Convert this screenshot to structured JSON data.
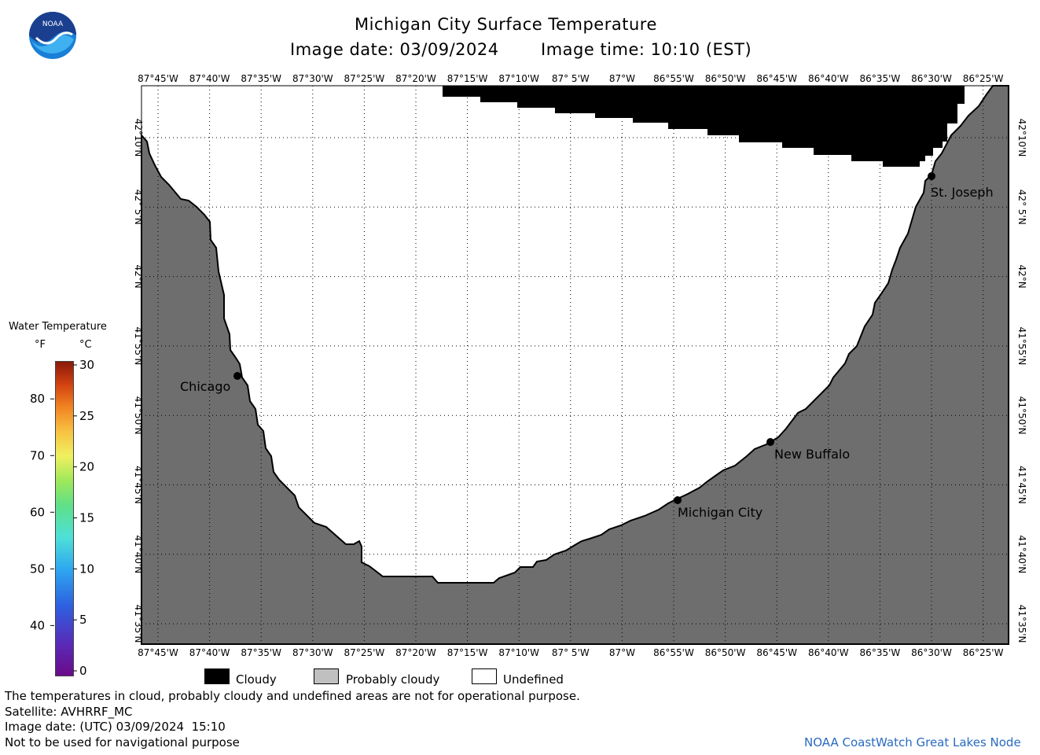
{
  "header": {
    "title": "Michigan City Surface Temperature",
    "image_date": "Image date: 03/09/2024",
    "image_time": "Image time: 10:10 (EST)"
  },
  "logo": {
    "text": "NOAA",
    "icon": "noaa-logo-icon"
  },
  "map": {
    "lon_labels": [
      "87°45'W",
      "87°40'W",
      "87°35'W",
      "87°30'W",
      "87°25'W",
      "87°20'W",
      "87°15'W",
      "87°10'W",
      "87° 5'W",
      "87°W",
      "86°55'W",
      "86°50'W",
      "86°45'W",
      "86°40'W",
      "86°35'W",
      "86°30'W",
      "86°25'W"
    ],
    "lat_labels": [
      "42°10'N",
      "42° 5'N",
      "42°N",
      "41°55'N",
      "41°50'N",
      "41°45'N",
      "41°40'N",
      "41°35'N"
    ],
    "cities": [
      {
        "name": "Chicago"
      },
      {
        "name": "Michigan City"
      },
      {
        "name": "New Buffalo"
      },
      {
        "name": "St. Joseph"
      }
    ],
    "colors": {
      "land": "#6e6e6e",
      "cloud": "#000000",
      "undefined": "#ffffff",
      "grid": "#000000"
    }
  },
  "colorbar": {
    "title": "Water Temperature",
    "unit_f": "°F",
    "unit_c": "°C",
    "f_ticks": [
      "80",
      "70",
      "60",
      "50",
      "40"
    ],
    "c_ticks": [
      "30",
      "25",
      "20",
      "15",
      "10",
      "5",
      "0"
    ]
  },
  "legend": {
    "cloudy": "Cloudy",
    "probably_cloudy": "Probably cloudy",
    "undefined": "Undefined",
    "colors": {
      "cloudy": "#000000",
      "probably_cloudy": "#c0c0c0",
      "undefined": "#ffffff"
    }
  },
  "footer": {
    "line1": "The temperatures in cloud, probably cloudy and undefined areas are not for operational purpose.",
    "line2": "Satellite: AVHRRF_MC",
    "line3": "Image date: (UTC) 03/09/2024  15:10",
    "line4": "Not to be used for navigational purpose",
    "credit": "NOAA CoastWatch Great Lakes Node"
  }
}
